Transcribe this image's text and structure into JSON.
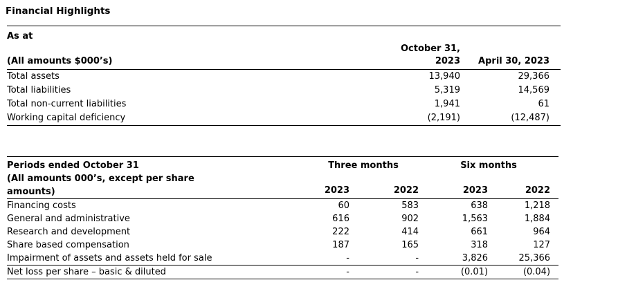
{
  "page": {
    "title": "Financial Highlights"
  },
  "table1": {
    "title": "As at",
    "subtitle": "(All amounts $000’s)",
    "columns": {
      "col1_line1": "October 31,",
      "col1_line2": "2023",
      "col2": "April 30, 2023"
    },
    "rows": [
      {
        "label": "Total assets",
        "oct31_2023": "13,940",
        "apr30_2023": "29,366"
      },
      {
        "label": "Total liabilities",
        "oct31_2023": "5,319",
        "apr30_2023": "14,569"
      },
      {
        "label": "Total non-current liabilities",
        "oct31_2023": "1,941",
        "apr30_2023": "61"
      },
      {
        "label": "Working capital deficiency",
        "oct31_2023": "(2,191)",
        "apr30_2023": "(12,487)"
      }
    ]
  },
  "table2": {
    "title": "Periods ended October 31",
    "subtitle": "(All amounts 000’s, except per share amounts)",
    "groups": [
      "Three months",
      "Six months"
    ],
    "years": [
      "2023",
      "2022",
      "2023",
      "2022"
    ],
    "rows": [
      {
        "label": "Financing costs",
        "values": [
          "60",
          "583",
          "638",
          "1,218"
        ]
      },
      {
        "label": "General and administrative",
        "values": [
          "616",
          "902",
          "1,563",
          "1,884"
        ]
      },
      {
        "label": "Research and development",
        "values": [
          "222",
          "414",
          "661",
          "964"
        ]
      },
      {
        "label": "Share based compensation",
        "values": [
          "187",
          "165",
          "318",
          "127"
        ]
      },
      {
        "label": "Impairment of assets and assets held for sale",
        "values": [
          "-",
          "-",
          "3,826",
          "25,366"
        ]
      },
      {
        "label": "Net loss per share – basic & diluted",
        "values": [
          "-",
          "-",
          "(0.01)",
          "(0.04)"
        ]
      }
    ]
  }
}
